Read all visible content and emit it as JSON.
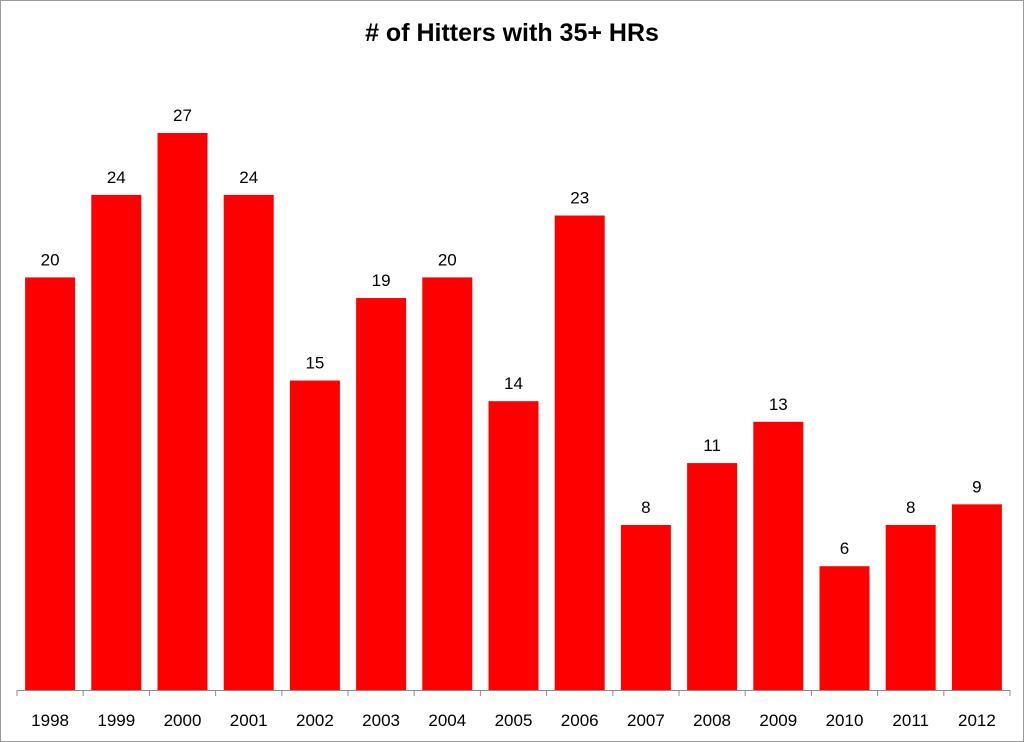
{
  "chart_data": {
    "type": "bar",
    "title": "# of Hitters with 35+ HRs",
    "xlabel": "",
    "ylabel": "",
    "categories": [
      "1998",
      "1999",
      "2000",
      "2001",
      "2002",
      "2003",
      "2004",
      "2005",
      "2006",
      "2007",
      "2008",
      "2009",
      "2010",
      "2011",
      "2012"
    ],
    "values": [
      20,
      24,
      27,
      24,
      15,
      19,
      20,
      14,
      23,
      8,
      11,
      13,
      6,
      8,
      9
    ],
    "ylim": [
      0,
      27
    ],
    "grid": false,
    "legend": "none",
    "data_labels": true,
    "bar_color": "#ff0000"
  }
}
